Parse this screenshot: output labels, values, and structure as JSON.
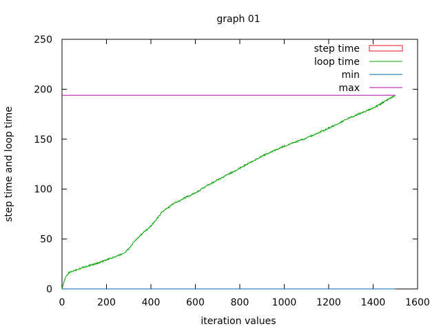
{
  "chart_data": {
    "type": "line",
    "title": "graph 01",
    "xlabel": "iteration values",
    "ylabel": "step time and loop time",
    "xlim": [
      0,
      1600
    ],
    "ylim": [
      0,
      250
    ],
    "xticks": [
      "0",
      "200",
      "400",
      "600",
      "800",
      "1000",
      "1200",
      "1400",
      "1600"
    ],
    "yticks": [
      "0",
      "50",
      "100",
      "150",
      "200",
      "250"
    ],
    "legend_position": "top-right",
    "grid": false,
    "series": [
      {
        "name": "step time",
        "style": "bar-outline",
        "color": "#e0161b",
        "x": [],
        "y": []
      },
      {
        "name": "loop time",
        "style": "line",
        "color": "#00a300",
        "x": [
          0,
          10,
          20,
          30,
          50,
          100,
          150,
          200,
          250,
          280,
          300,
          320,
          350,
          400,
          430,
          450,
          500,
          550,
          600,
          650,
          700,
          800,
          900,
          1000,
          1100,
          1200,
          1300,
          1400,
          1500
        ],
        "y": [
          0,
          8,
          13,
          16,
          18,
          22,
          25,
          29,
          33,
          36,
          40,
          46,
          53,
          63,
          71,
          77,
          85,
          91,
          96,
          103,
          109,
          121,
          133,
          143,
          151,
          161,
          172,
          181,
          194
        ]
      },
      {
        "name": "min",
        "style": "line",
        "color": "#0060ad",
        "x": [
          0,
          1500
        ],
        "y": [
          0,
          0
        ]
      },
      {
        "name": "max",
        "style": "line",
        "color": "#b4009e",
        "x": [
          0,
          1500
        ],
        "y": [
          194,
          194
        ]
      }
    ]
  }
}
